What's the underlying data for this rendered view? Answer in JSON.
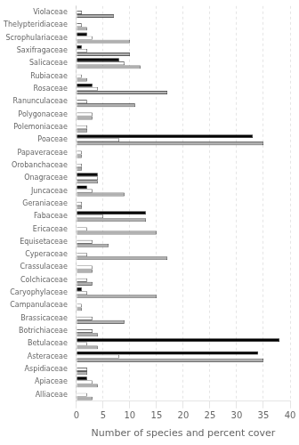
{
  "chart_data": {
    "type": "bar",
    "orientation": "horizontal",
    "xlabel": "Number of species and percent cover",
    "categories": [
      "Violaceae",
      "Thelypteridiaceae",
      "Scrophulariaceae",
      "Saxifragaceae",
      "Salicaceae",
      "Rubiaceae",
      "Rosaceae",
      "Ranunculaceae",
      "Polygonaceae",
      "Polemoniaceae",
      "Poaceae",
      "Papaveraceae",
      "Orobanchaceae",
      "Onagraceae",
      "Juncaceae",
      "Geraniaceae",
      "Fabaceae",
      "Ericaceae",
      "Equisetaceae",
      "Cyperaceae",
      "Crassulaceae",
      "Colchicaceae",
      "Caryophylaceae",
      "Campanulaceae",
      "Brassicaceae",
      "Botrichiaceae",
      "Betulaceae",
      "Asteraceae",
      "Aspidiaceae",
      "Apiaceae",
      "Alliaceae"
    ],
    "series": [
      {
        "color": "#000000",
        "values": [
          0,
          0,
          2,
          1,
          8,
          0,
          3,
          0,
          0,
          0,
          33,
          0,
          0,
          4,
          2,
          0,
          13,
          0,
          0,
          0,
          0,
          0,
          1,
          0,
          0,
          0,
          38,
          34,
          0,
          2,
          0
        ]
      },
      {
        "color": "#ffffff",
        "values": [
          1,
          1,
          3,
          2,
          9,
          1,
          4,
          2,
          3,
          2,
          8,
          1,
          1,
          4,
          3,
          1,
          5,
          2,
          3,
          2,
          3,
          2,
          2,
          1,
          3,
          3,
          2,
          8,
          2,
          3,
          2
        ]
      },
      {
        "color": "#b0b0b0",
        "values": [
          7,
          2,
          10,
          10,
          12,
          2,
          17,
          11,
          3,
          2,
          35,
          1,
          1,
          4,
          9,
          1,
          13,
          15,
          6,
          17,
          3,
          3,
          15,
          1,
          9,
          4,
          4,
          35,
          2,
          4,
          3
        ]
      }
    ],
    "xlim": [
      0,
      40
    ],
    "xticks": [
      0,
      5,
      10,
      15,
      20,
      25,
      30,
      35,
      40
    ],
    "grid": true
  }
}
